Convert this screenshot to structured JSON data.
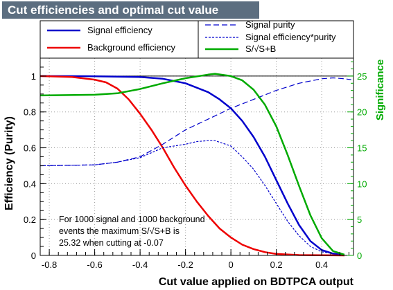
{
  "title": "Cut efficiencies and optimal cut value",
  "colors": {
    "title_bg": "#5c6e80",
    "signal": "#0000cc",
    "background": "#ee0000",
    "significance": "#00aa00"
  },
  "chart_data": {
    "type": "line",
    "xlabel": "Cut value applied on BDTPCA output",
    "ylabel": "Efficiency (Purity)",
    "y2label": "Significance",
    "xlim": [
      -0.84,
      0.54
    ],
    "ylim": [
      0,
      1.1
    ],
    "y2lim": [
      0,
      27.5
    ],
    "xticks": [
      "-0.8",
      "-0.6",
      "-0.4",
      "-0.2",
      "0",
      "0.2",
      "0.4"
    ],
    "yticks": [
      "0",
      "0.2",
      "0.4",
      "0.6",
      "0.8",
      "1"
    ],
    "y2ticks": [
      "0",
      "5",
      "10",
      "15",
      "20",
      "25"
    ],
    "grid": true,
    "legend_position": "top",
    "series": [
      {
        "name": "Signal efficiency",
        "color": "#0000cc",
        "style": "solid",
        "width": 2.5,
        "axis": "left",
        "x": [
          -0.84,
          -0.6,
          -0.4,
          -0.3,
          -0.2,
          -0.1,
          -0.05,
          0,
          0.05,
          0.1,
          0.15,
          0.2,
          0.25,
          0.3,
          0.35,
          0.4,
          0.45,
          0.5
        ],
        "y": [
          1.0,
          0.999,
          0.995,
          0.985,
          0.96,
          0.91,
          0.87,
          0.82,
          0.75,
          0.66,
          0.55,
          0.42,
          0.29,
          0.17,
          0.08,
          0.03,
          0.01,
          0.0
        ]
      },
      {
        "name": "Background efficiency",
        "color": "#ee0000",
        "style": "solid",
        "width": 2.5,
        "axis": "left",
        "x": [
          -0.84,
          -0.7,
          -0.6,
          -0.55,
          -0.5,
          -0.45,
          -0.4,
          -0.35,
          -0.3,
          -0.25,
          -0.2,
          -0.15,
          -0.1,
          -0.05,
          0,
          0.05,
          0.1,
          0.15,
          0.2,
          0.3,
          0.5
        ],
        "y": [
          1.0,
          0.995,
          0.98,
          0.965,
          0.93,
          0.87,
          0.79,
          0.7,
          0.6,
          0.49,
          0.39,
          0.3,
          0.22,
          0.15,
          0.1,
          0.06,
          0.035,
          0.018,
          0.008,
          0.002,
          0.0
        ]
      },
      {
        "name": "Signal purity",
        "color": "#0000cc",
        "style": "dashed",
        "width": 1.2,
        "axis": "left",
        "x": [
          -0.84,
          -0.6,
          -0.5,
          -0.4,
          -0.3,
          -0.2,
          -0.1,
          0,
          0.1,
          0.2,
          0.3,
          0.4,
          0.45,
          0.5,
          0.53
        ],
        "y": [
          0.5,
          0.505,
          0.52,
          0.55,
          0.62,
          0.7,
          0.76,
          0.82,
          0.87,
          0.92,
          0.96,
          0.985,
          0.99,
          0.985,
          0.98
        ]
      },
      {
        "name": "Signal efficiency*purity",
        "color": "#0000cc",
        "style": "dotted",
        "width": 1.2,
        "axis": "left",
        "x": [
          -0.84,
          -0.6,
          -0.5,
          -0.4,
          -0.3,
          -0.2,
          -0.15,
          -0.1,
          -0.07,
          0,
          0.05,
          0.1,
          0.15,
          0.2,
          0.25,
          0.3,
          0.35,
          0.4,
          0.5
        ],
        "y": [
          0.5,
          0.505,
          0.52,
          0.545,
          0.6,
          0.62,
          0.635,
          0.64,
          0.64,
          0.61,
          0.55,
          0.48,
          0.39,
          0.29,
          0.19,
          0.11,
          0.05,
          0.02,
          0.0
        ]
      },
      {
        "name": "S/√S+B",
        "color": "#00aa00",
        "style": "solid",
        "width": 2.5,
        "axis": "right",
        "x": [
          -0.84,
          -0.6,
          -0.5,
          -0.4,
          -0.3,
          -0.2,
          -0.1,
          -0.07,
          0,
          0.05,
          0.1,
          0.15,
          0.2,
          0.25,
          0.3,
          0.35,
          0.4,
          0.45,
          0.5
        ],
        "y": [
          22.3,
          22.4,
          22.6,
          23.2,
          24.0,
          24.7,
          25.2,
          25.32,
          25.0,
          24.4,
          23.1,
          21.0,
          18.0,
          14.0,
          9.7,
          5.6,
          2.4,
          0.6,
          0.1
        ]
      }
    ],
    "annotation": [
      "For 1000 signal and 1000 background",
      "events the maximum S/√S+B is",
      "25.32 when cutting at -0.07"
    ]
  }
}
